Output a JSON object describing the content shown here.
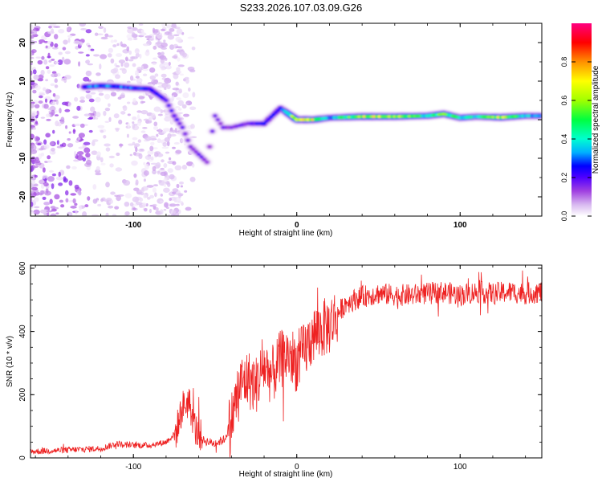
{
  "title": "S233.2026.107.03.09.G26",
  "colors": {
    "snr_line": "#ee2222",
    "colormap": [
      "#ffffff",
      "#d8b8f0",
      "#a040e0",
      "#5000ff",
      "#0000ff",
      "#00b0ff",
      "#00ffd0",
      "#00ff40",
      "#a0ff00",
      "#ffff00",
      "#ff9000",
      "#ff0000",
      "#ff0080"
    ]
  },
  "chart_data": [
    {
      "type": "heatmap",
      "title": "",
      "xlabel": "Height of straight line (km)",
      "ylabel": "Frequency (Hz)",
      "xlim": [
        -163,
        150
      ],
      "ylim": [
        -25,
        25
      ],
      "xticks": [
        -100,
        0,
        100
      ],
      "yticks": [
        -20,
        -10,
        0,
        10,
        20
      ],
      "colorbar": {
        "label": "Normalized spectral amplitude",
        "range": [
          0,
          1
        ],
        "ticks": [
          0.0,
          0.2,
          0.4,
          0.6,
          0.8
        ]
      },
      "ridge": {
        "description": "dominant frequency ridge (km, Hz, normalized amplitude)",
        "points": [
          [
            -130,
            8.5,
            0.35
          ],
          [
            -120,
            8.8,
            0.4
          ],
          [
            -110,
            8.6,
            0.38
          ],
          [
            -100,
            8.2,
            0.35
          ],
          [
            -90,
            8.0,
            0.3
          ],
          [
            -80,
            5.0,
            0.25
          ],
          [
            -75,
            1.0,
            0.25
          ],
          [
            -70,
            -2.0,
            0.22
          ],
          [
            -65,
            -7.0,
            0.2
          ],
          [
            -60,
            -9.0,
            0.2
          ],
          [
            -55,
            -11.0,
            0.18
          ],
          [
            -50,
            1.0,
            0.2
          ],
          [
            -45,
            -2.0,
            0.2
          ],
          [
            -40,
            -2.0,
            0.2
          ],
          [
            -35,
            -1.5,
            0.2
          ],
          [
            -30,
            -1.0,
            0.22
          ],
          [
            -20,
            -1.0,
            0.3
          ],
          [
            -10,
            3.0,
            0.3
          ],
          [
            0,
            0.0,
            0.75
          ],
          [
            10,
            0.0,
            0.7
          ],
          [
            20,
            0.5,
            0.4
          ],
          [
            40,
            0.8,
            0.7
          ],
          [
            60,
            0.8,
            0.65
          ],
          [
            80,
            1.0,
            0.5
          ],
          [
            90,
            1.5,
            0.6
          ],
          [
            100,
            0.5,
            0.5
          ],
          [
            110,
            0.8,
            0.45
          ],
          [
            125,
            0.6,
            0.7
          ],
          [
            140,
            1.0,
            0.45
          ],
          [
            150,
            1.0,
            0.4
          ]
        ]
      }
    },
    {
      "type": "line",
      "title": "",
      "xlabel": "Height of straight line (km)",
      "ylabel": "SNR (10 * v/v)",
      "xlim": [
        -163,
        150
      ],
      "ylim": [
        0,
        610
      ],
      "xticks": [
        -100,
        0,
        100
      ],
      "yticks": [
        0,
        200,
        400,
        600
      ],
      "series": [
        {
          "name": "SNR",
          "points": [
            [
              -163,
              20
            ],
            [
              -140,
              25
            ],
            [
              -120,
              30
            ],
            [
              -110,
              45
            ],
            [
              -100,
              40
            ],
            [
              -90,
              40
            ],
            [
              -80,
              50
            ],
            [
              -74,
              80
            ],
            [
              -70,
              160
            ],
            [
              -66,
              180
            ],
            [
              -62,
              90
            ],
            [
              -57,
              55
            ],
            [
              -50,
              45
            ],
            [
              -44,
              60
            ],
            [
              -40,
              120
            ],
            [
              -35,
              230
            ],
            [
              -30,
              250
            ],
            [
              -25,
              230
            ],
            [
              -20,
              290
            ],
            [
              -15,
              260
            ],
            [
              -10,
              310
            ],
            [
              -5,
              330
            ],
            [
              0,
              300
            ],
            [
              5,
              340
            ],
            [
              10,
              390
            ],
            [
              20,
              420
            ],
            [
              30,
              490
            ],
            [
              40,
              510
            ],
            [
              50,
              520
            ],
            [
              60,
              515
            ],
            [
              70,
              515
            ],
            [
              80,
              520
            ],
            [
              90,
              525
            ],
            [
              100,
              515
            ],
            [
              110,
              525
            ],
            [
              120,
              520
            ],
            [
              130,
              525
            ],
            [
              140,
              520
            ],
            [
              150,
              525
            ]
          ]
        }
      ]
    }
  ]
}
